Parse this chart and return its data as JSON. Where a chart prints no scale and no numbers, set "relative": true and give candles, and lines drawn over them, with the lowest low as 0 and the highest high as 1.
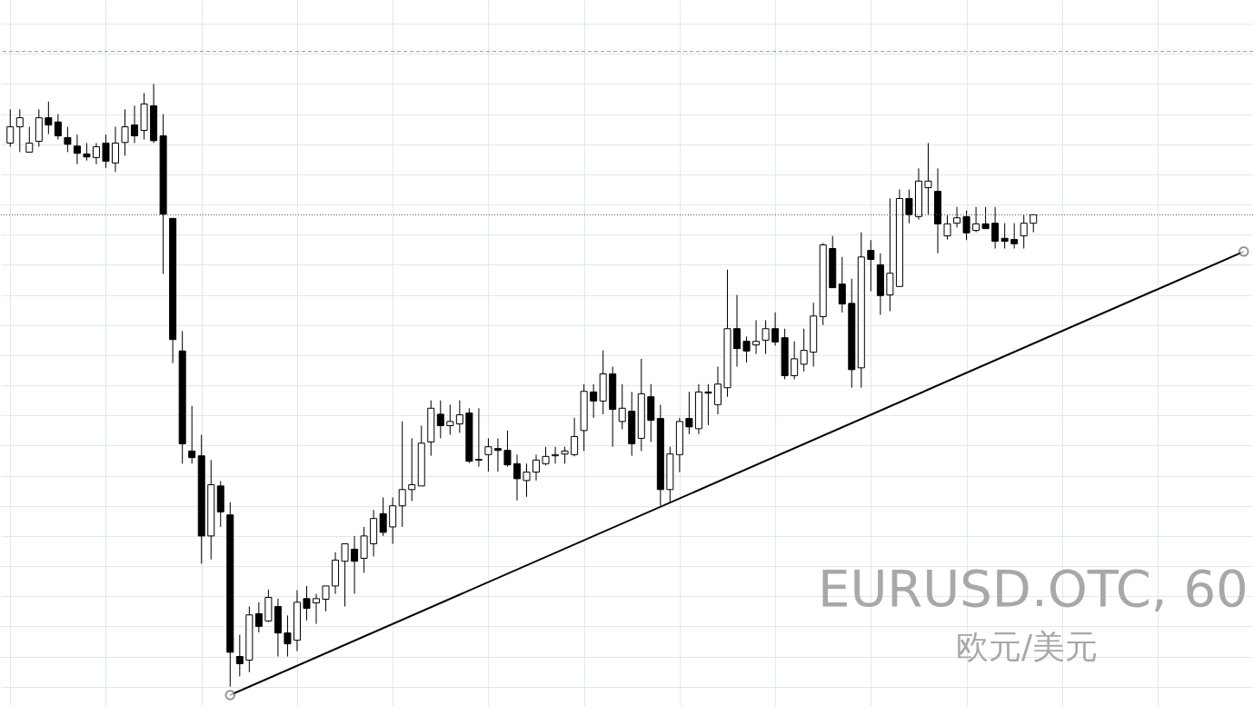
{
  "chart_data": {
    "type": "candlestick",
    "title": "EURUSD.OTC, 60",
    "subtitle": "欧元/美元",
    "relative": true,
    "grid": true,
    "categories": [
      null,
      null,
      null,
      null,
      null,
      null,
      null,
      null,
      null,
      null,
      null,
      null,
      null,
      null,
      null,
      null,
      null,
      null,
      null,
      null,
      null,
      null,
      null,
      null,
      null,
      null,
      null,
      null,
      null,
      null,
      null,
      null,
      null,
      null,
      null,
      null,
      null,
      null,
      null,
      null,
      null,
      null,
      null,
      null,
      null,
      null,
      null,
      null,
      null,
      null,
      null,
      null,
      null,
      null,
      null,
      null,
      null,
      null,
      null,
      null,
      null,
      null,
      null,
      null,
      null,
      null,
      null,
      null,
      null,
      null,
      null,
      null,
      null,
      null,
      null,
      null,
      null,
      null,
      null,
      null,
      null,
      null,
      null,
      null,
      null,
      null,
      null,
      null,
      null,
      null,
      null,
      null,
      null,
      null,
      null,
      null,
      null,
      null,
      null,
      null,
      null,
      null,
      null,
      null,
      null,
      null,
      null,
      null,
      null,
      null,
      null,
      null,
      null,
      null,
      null,
      null,
      null,
      null,
      null,
      null,
      null,
      null,
      null,
      null,
      null,
      null,
      null,
      null,
      null,
      null
    ],
    "ohlc": [
      [
        0.902,
        0.958,
        0.896,
        0.929
      ],
      [
        0.929,
        0.958,
        0.887,
        0.944
      ],
      [
        0.887,
        0.929,
        0.887,
        0.902
      ],
      [
        0.905,
        0.958,
        0.896,
        0.944
      ],
      [
        0.944,
        0.971,
        0.917,
        0.932
      ],
      [
        0.937,
        0.95,
        0.908,
        0.914
      ],
      [
        0.911,
        0.929,
        0.887,
        0.9
      ],
      [
        0.897,
        0.916,
        0.867,
        0.885
      ],
      [
        0.884,
        0.902,
        0.873,
        0.879
      ],
      [
        0.878,
        0.902,
        0.867,
        0.896
      ],
      [
        0.902,
        0.916,
        0.861,
        0.872
      ],
      [
        0.869,
        0.929,
        0.854,
        0.902
      ],
      [
        0.903,
        0.958,
        0.881,
        0.929
      ],
      [
        0.932,
        0.964,
        0.902,
        0.914
      ],
      [
        0.923,
        0.985,
        0.908,
        0.967
      ],
      [
        0.964,
        1,
        0.902,
        0.906
      ],
      [
        0.914,
        0.95,
        0.685,
        0.784
      ],
      [
        0.777,
        0.777,
        0.537,
        0.576
      ],
      [
        0.557,
        0.59,
        0.37,
        0.403
      ],
      [
        0.391,
        0.466,
        0.37,
        0.38
      ],
      [
        0.383,
        0.418,
        0.204,
        0.25
      ],
      [
        0.25,
        0.376,
        0.211,
        0.335
      ],
      [
        0.333,
        0.341,
        0.265,
        0.29
      ],
      [
        0.285,
        0.306,
        0,
        0.057
      ],
      [
        0.05,
        0.086,
        0.017,
        0.038
      ],
      [
        0.044,
        0.133,
        0.024,
        0.119
      ],
      [
        0.121,
        0.14,
        0.09,
        0.1
      ],
      [
        0.109,
        0.161,
        0.107,
        0.148
      ],
      [
        0.133,
        0.146,
        0.05,
        0.089
      ],
      [
        0.089,
        0.118,
        0.05,
        0.071
      ],
      [
        0.077,
        0.16,
        0.059,
        0.14
      ],
      [
        0.146,
        0.167,
        0.11,
        0.13
      ],
      [
        0.139,
        0.154,
        0.104,
        0.146
      ],
      [
        0.145,
        0.167,
        0.125,
        0.167
      ],
      [
        0.167,
        0.223,
        0.154,
        0.21
      ],
      [
        0.208,
        0.237,
        0.133,
        0.237
      ],
      [
        0.228,
        0.25,
        0.154,
        0.208
      ],
      [
        0.213,
        0.265,
        0.189,
        0.25
      ],
      [
        0.237,
        0.293,
        0.216,
        0.279
      ],
      [
        0.287,
        0.314,
        0.25,
        0.256
      ],
      [
        0.265,
        0.314,
        0.237,
        0.3
      ],
      [
        0.3,
        0.44,
        0.265,
        0.327
      ],
      [
        0.327,
        0.412,
        0.308,
        0.335
      ],
      [
        0.333,
        0.433,
        0.333,
        0.404
      ],
      [
        0.406,
        0.475,
        0.383,
        0.462
      ],
      [
        0.452,
        0.475,
        0.412,
        0.433
      ],
      [
        0.433,
        0.468,
        0.418,
        0.44
      ],
      [
        0.436,
        0.475,
        0.421,
        0.451
      ],
      [
        0.454,
        0.462,
        0.371,
        0.374
      ],
      [
        0.377,
        0.462,
        0.365,
        0.376
      ],
      [
        0.385,
        0.412,
        0.357,
        0.398
      ],
      [
        0.395,
        0.412,
        0.357,
        0.392
      ],
      [
        0.392,
        0.425,
        0.365,
        0.368
      ],
      [
        0.37,
        0.385,
        0.309,
        0.345
      ],
      [
        0.342,
        0.37,
        0.315,
        0.356
      ],
      [
        0.356,
        0.385,
        0.342,
        0.376
      ],
      [
        0.37,
        0.398,
        0.367,
        0.382
      ],
      [
        0.383,
        0.398,
        0.37,
        0.385
      ],
      [
        0.386,
        0.398,
        0.37,
        0.391
      ],
      [
        0.385,
        0.446,
        0.382,
        0.415
      ],
      [
        0.425,
        0.502,
        0.391,
        0.49
      ],
      [
        0.489,
        0.502,
        0.446,
        0.474
      ],
      [
        0.474,
        0.558,
        0.452,
        0.519
      ],
      [
        0.519,
        0.531,
        0.398,
        0.46
      ],
      [
        0.44,
        0.502,
        0.427,
        0.462
      ],
      [
        0.457,
        0.489,
        0.383,
        0.403
      ],
      [
        0.412,
        0.544,
        0.391,
        0.486
      ],
      [
        0.481,
        0.502,
        0.406,
        0.442
      ],
      [
        0.445,
        0.468,
        0.3,
        0.327
      ],
      [
        0.327,
        0.398,
        0.306,
        0.386
      ],
      [
        0.385,
        0.446,
        0.356,
        0.44
      ],
      [
        0.445,
        0.489,
        0.419,
        0.431
      ],
      [
        0.428,
        0.502,
        0.419,
        0.489
      ],
      [
        0.489,
        0.502,
        0.434,
        0.487
      ],
      [
        0.468,
        0.531,
        0.452,
        0.502
      ],
      [
        0.496,
        0.692,
        0.481,
        0.594
      ],
      [
        0.594,
        0.65,
        0.531,
        0.561
      ],
      [
        0.573,
        0.581,
        0.538,
        0.557
      ],
      [
        0.567,
        0.608,
        0.552,
        0.573
      ],
      [
        0.575,
        0.608,
        0.552,
        0.594
      ],
      [
        0.594,
        0.621,
        0.566,
        0.572
      ],
      [
        0.579,
        0.594,
        0.51,
        0.516
      ],
      [
        0.516,
        0.573,
        0.51,
        0.544
      ],
      [
        0.535,
        0.594,
        0.523,
        0.558
      ],
      [
        0.555,
        0.637,
        0.531,
        0.615
      ],
      [
        0.614,
        0.736,
        0.6,
        0.733
      ],
      [
        0.727,
        0.748,
        0.662,
        0.662
      ],
      [
        0.668,
        0.713,
        0.621,
        0.635
      ],
      [
        0.636,
        0.677,
        0.496,
        0.526
      ],
      [
        0.529,
        0.754,
        0.496,
        0.713
      ],
      [
        0.724,
        0.741,
        0.656,
        0.709
      ],
      [
        0.7,
        0.719,
        0.617,
        0.649
      ],
      [
        0.65,
        0.81,
        0.623,
        0.686
      ],
      [
        0.664,
        0.825,
        0.664,
        0.81
      ],
      [
        0.81,
        0.825,
        0.769,
        0.783
      ],
      [
        0.78,
        0.86,
        0.775,
        0.839
      ],
      [
        0.828,
        0.902,
        0.783,
        0.839
      ],
      [
        0.822,
        0.86,
        0.719,
        0.768
      ],
      [
        0.748,
        0.783,
        0.742,
        0.768
      ],
      [
        0.769,
        0.796,
        0.762,
        0.778
      ],
      [
        0.78,
        0.79,
        0.741,
        0.753
      ],
      [
        0.757,
        0.796,
        0.754,
        0.768
      ],
      [
        0.768,
        0.796,
        0.76,
        0.76
      ],
      [
        0.769,
        0.796,
        0.727,
        0.739
      ],
      [
        0.744,
        0.769,
        0.727,
        0.739
      ],
      [
        0.742,
        0.769,
        0.727,
        0.735
      ],
      [
        0.748,
        0.783,
        0.727,
        0.769
      ],
      [
        0.769,
        0.783,
        0.754,
        0.783
      ],
      null,
      null,
      null,
      null,
      null,
      null,
      null,
      null,
      null,
      null,
      null,
      null,
      null,
      null,
      null,
      null,
      null,
      null,
      null,
      null,
      null,
      null
    ],
    "series": [
      {
        "type": "line",
        "color": "#000000",
        "marker": "circle",
        "values": [
          null,
          null,
          null,
          null,
          null,
          null,
          null,
          null,
          null,
          null,
          null,
          null,
          null,
          null,
          null,
          null,
          null,
          null,
          null,
          null,
          null,
          null,
          null,
          -0.014,
          null,
          null,
          null,
          null,
          null,
          null,
          null,
          null,
          null,
          null,
          null,
          null,
          null,
          null,
          null,
          null,
          null,
          null,
          null,
          null,
          null,
          null,
          null,
          null,
          null,
          null,
          null,
          null,
          null,
          null,
          null,
          null,
          null,
          null,
          null,
          null,
          null,
          null,
          null,
          null,
          null,
          null,
          null,
          null,
          null,
          null,
          null,
          null,
          null,
          null,
          null,
          null,
          null,
          null,
          null,
          null,
          null,
          null,
          null,
          null,
          null,
          null,
          null,
          null,
          null,
          null,
          null,
          null,
          null,
          null,
          null,
          null,
          null,
          null,
          null,
          null,
          null,
          null,
          null,
          null,
          null,
          null,
          null,
          null,
          null,
          null,
          null,
          null,
          null,
          null,
          null,
          null,
          null,
          null,
          null,
          null,
          null,
          null,
          null,
          null,
          null,
          null,
          null,
          null,
          null,
          0.722
        ]
      }
    ],
    "ref_lines": [
      {
        "axis": "y",
        "value": 0.783,
        "color": "#555555",
        "line_style": "dotted"
      },
      {
        "axis": "y",
        "value": 1.054,
        "color": "#999999",
        "line_style": "dashed"
      }
    ]
  }
}
